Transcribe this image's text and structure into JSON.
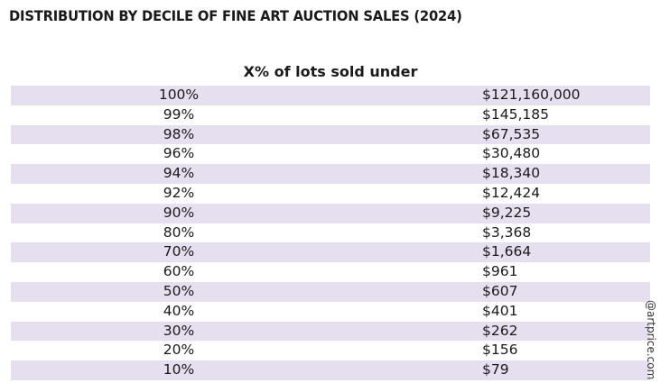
{
  "title": "DISTRIBUTION BY DECILE OF FINE ART AUCTION SALES (2024)",
  "column_header": "X% of lots sold under",
  "rows": [
    {
      "percent": "100%",
      "value": "$121,160,000"
    },
    {
      "percent": "99%",
      "value": "$145,185"
    },
    {
      "percent": "98%",
      "value": "$67,535"
    },
    {
      "percent": "96%",
      "value": "$30,480"
    },
    {
      "percent": "94%",
      "value": "$18,340"
    },
    {
      "percent": "92%",
      "value": "$12,424"
    },
    {
      "percent": "90%",
      "value": "$9,225"
    },
    {
      "percent": "80%",
      "value": "$3,368"
    },
    {
      "percent": "70%",
      "value": "$1,664"
    },
    {
      "percent": "60%",
      "value": "$961"
    },
    {
      "percent": "50%",
      "value": "$607"
    },
    {
      "percent": "40%",
      "value": "$401"
    },
    {
      "percent": "30%",
      "value": "$262"
    },
    {
      "percent": "20%",
      "value": "$156"
    },
    {
      "percent": "10%",
      "value": "$79"
    }
  ],
  "watermark": "@artprice.com",
  "colors": {
    "row_shade": "#e6dff0",
    "text": "#1a1a1a"
  }
}
